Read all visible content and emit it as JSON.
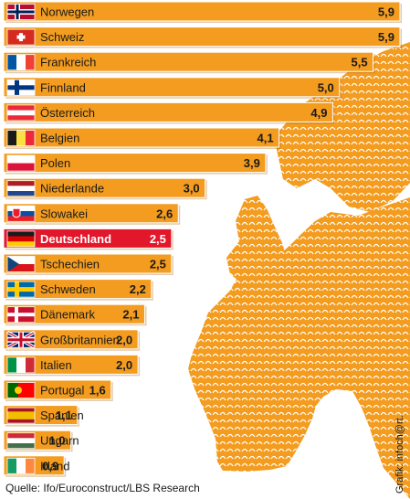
{
  "chart_data": {
    "type": "bar",
    "orientation": "horizontal",
    "categories": [
      "Norwegen",
      "Schweiz",
      "Frankreich",
      "Finnland",
      "Österreich",
      "Belgien",
      "Polen",
      "Niederlande",
      "Slowakei",
      "Deutschland",
      "Tschechien",
      "Schweden",
      "Dänemark",
      "Großbritannien",
      "Italien",
      "Portugal",
      "Spanien",
      "Ungarn",
      "Irland"
    ],
    "value_labels": [
      "5,9",
      "5,9",
      "5,5",
      "5,0",
      "4,9",
      "4,1",
      "3,9",
      "3,0",
      "2,6",
      "2,5",
      "2,5",
      "2,2",
      "2,1",
      "2,0",
      "2,0",
      "1,6",
      "1,1",
      "1,0",
      "0,9"
    ],
    "values": [
      5.9,
      5.9,
      5.5,
      5.0,
      4.9,
      4.1,
      3.9,
      3.0,
      2.6,
      2.5,
      2.5,
      2.2,
      2.1,
      2.0,
      2.0,
      1.6,
      1.1,
      1.0,
      0.9
    ],
    "highlight": "Deutschland",
    "bar_color": "#f39c1f",
    "highlight_color": "#e3172b",
    "map_color": "#f39c1f",
    "xlim": [
      0,
      5.9
    ]
  },
  "flags": [
    "flag-norway-icon",
    "flag-switzerland-icon",
    "flag-france-icon",
    "flag-finland-icon",
    "flag-austria-icon",
    "flag-belgium-icon",
    "flag-poland-icon",
    "flag-netherlands-icon",
    "flag-slovakia-icon",
    "flag-germany-icon",
    "flag-czech-icon",
    "flag-sweden-icon",
    "flag-denmark-icon",
    "flag-uk-icon",
    "flag-italy-icon",
    "flag-portugal-icon",
    "flag-spain-icon",
    "flag-hungary-icon",
    "flag-ireland-icon"
  ],
  "source": "Quelle: Ifo/Euroconstruct/LBS Research",
  "credit": "Grafik: infoch@rt."
}
